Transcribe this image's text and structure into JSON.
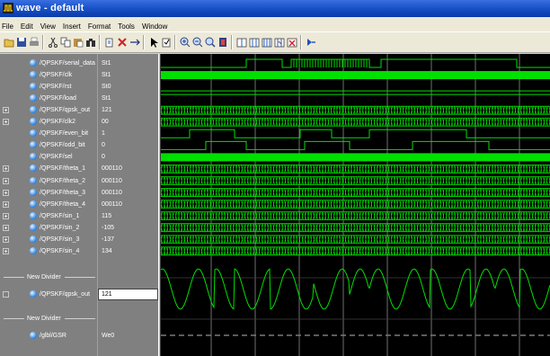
{
  "window": {
    "title": "wave - default"
  },
  "menu": [
    "File",
    "Edit",
    "View",
    "Insert",
    "Format",
    "Tools",
    "Window"
  ],
  "toolbar": {
    "buttons": [
      "open-icon",
      "save-icon",
      "print-icon",
      "cut-icon",
      "copy-icon",
      "paste-icon",
      "find-icon",
      "insert-icon",
      "delete-icon",
      "zoom-fit-icon",
      "select-pointer-icon",
      "edit-icon",
      "zoom-in-icon",
      "zoom-out-icon",
      "zoom-full-icon",
      "zoom-range-icon",
      "cursor-add-icon",
      "cursor-prev-icon",
      "cursor-next-icon",
      "cursor-find-icon",
      "cursor-delete-icon",
      "run-icon"
    ]
  },
  "signals": [
    {
      "name": "/QPSKF/serial_data",
      "value": "St1",
      "expandable": false,
      "kind": "serial"
    },
    {
      "name": "/QPSKF/clk",
      "value": "St1",
      "expandable": false,
      "kind": "clk"
    },
    {
      "name": "/QPSKF/rst",
      "value": "St0",
      "expandable": false,
      "kind": "low"
    },
    {
      "name": "/QPSKF/load",
      "value": "St1",
      "expandable": false,
      "kind": "high"
    },
    {
      "name": "/QPSKF/qpsk_out",
      "value": "121",
      "expandable": true,
      "kind": "bus"
    },
    {
      "name": "/QPSKF/clk2",
      "value": "00",
      "expandable": true,
      "kind": "bus"
    },
    {
      "name": "/QPSKF/even_bit",
      "value": "1",
      "expandable": false,
      "kind": "even"
    },
    {
      "name": "/QPSKF/odd_bit",
      "value": "0",
      "expandable": false,
      "kind": "odd"
    },
    {
      "name": "/QPSKF/sel",
      "value": "0",
      "expandable": false,
      "kind": "fast"
    },
    {
      "name": "/QPSKF/theta_1",
      "value": "000110",
      "expandable": true,
      "kind": "bus"
    },
    {
      "name": "/QPSKF/theta_2",
      "value": "000110",
      "expandable": true,
      "kind": "bus"
    },
    {
      "name": "/QPSKF/theta_3",
      "value": "000110",
      "expandable": true,
      "kind": "bus"
    },
    {
      "name": "/QPSKF/theta_4",
      "value": "000110",
      "expandable": true,
      "kind": "bus"
    },
    {
      "name": "/QPSKF/sin_1",
      "value": "115",
      "expandable": true,
      "kind": "bus"
    },
    {
      "name": "/QPSKF/sin_2",
      "value": "-105",
      "expandable": true,
      "kind": "bus"
    },
    {
      "name": "/QPSKF/sin_3",
      "value": "-137",
      "expandable": true,
      "kind": "bus"
    },
    {
      "name": "/QPSKF/sin_4",
      "value": "134",
      "expandable": true,
      "kind": "bus"
    }
  ],
  "dividers": [
    "New Divider",
    "New Divider"
  ],
  "analog_signal": {
    "name": "/QPSKF/qpsk_out",
    "value": "121"
  },
  "gsr_signal": {
    "name": "/glbl/GSR",
    "value": "We0"
  },
  "colors": {
    "wave_green": "#00e000",
    "wave_bg": "#000000",
    "cursor": "#8c8c8c",
    "title_blue": "#1850c8"
  }
}
